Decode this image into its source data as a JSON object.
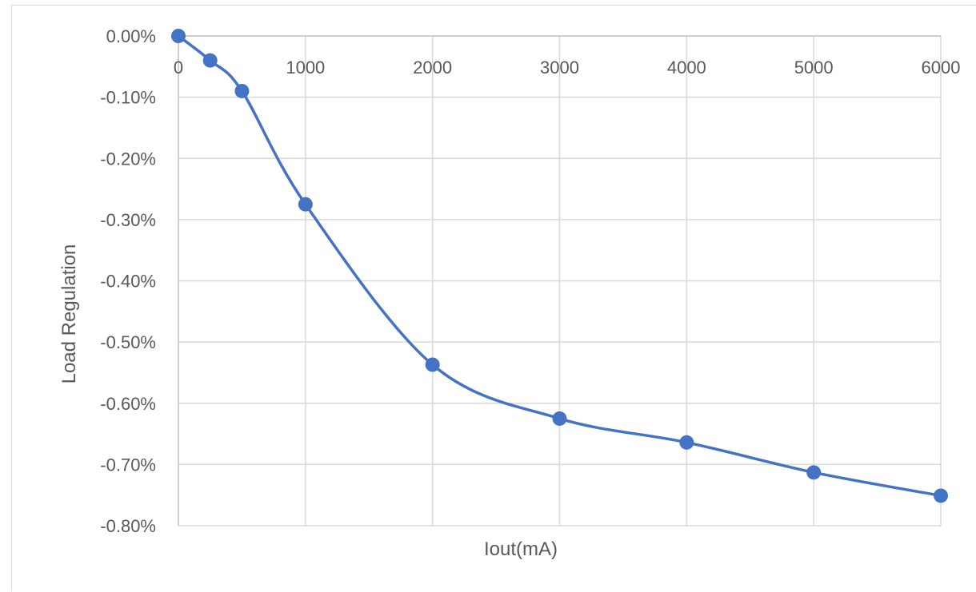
{
  "chart_data": {
    "type": "line",
    "smooth": true,
    "title": "",
    "xlabel": "Iout(mA)",
    "ylabel": "Load Regulation",
    "xlim": [
      0,
      6000
    ],
    "ylim": [
      -0.8,
      0
    ],
    "x_ticks": [
      0,
      1000,
      2000,
      3000,
      4000,
      5000,
      6000
    ],
    "x_tick_labels": [
      "0",
      "1000",
      "2000",
      "3000",
      "4000",
      "5000",
      "6000"
    ],
    "y_ticks": [
      0,
      -0.1,
      -0.2,
      -0.3,
      -0.4,
      -0.5,
      -0.6,
      -0.7,
      -0.8
    ],
    "y_tick_labels": [
      "0.00%",
      "-0.10%",
      "-0.20%",
      "-0.30%",
      "-0.40%",
      "-0.50%",
      "-0.60%",
      "-0.70%",
      "-0.80%"
    ],
    "x_axis_position": "top",
    "grid": true,
    "legend": "none",
    "series": [
      {
        "color": "#4472c4",
        "x": [
          0,
          250,
          500,
          1000,
          2000,
          3000,
          4000,
          5000,
          6000
        ],
        "y": [
          0.0,
          -0.04,
          -0.09,
          -0.275,
          -0.537,
          -0.625,
          -0.664,
          -0.713,
          -0.751
        ]
      }
    ]
  }
}
